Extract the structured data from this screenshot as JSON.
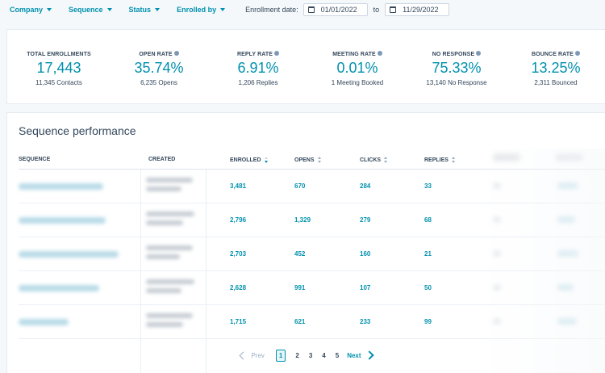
{
  "filters": {
    "company": "Company",
    "sequence": "Sequence",
    "status": "Status",
    "enrolled_by": "Enrolled by",
    "enrollment_date_label": "Enrollment date:",
    "start_date": "01/01/2022",
    "to_label": "to",
    "end_date": "11/29/2022"
  },
  "stats": [
    {
      "label": "TOTAL ENROLLMENTS",
      "value": "17,443",
      "sub": "11,345 Contacts",
      "info": false
    },
    {
      "label": "OPEN RATE",
      "value": "35.74%",
      "sub": "6,235 Opens",
      "info": true
    },
    {
      "label": "REPLY RATE",
      "value": "6.91%",
      "sub": "1,206 Replies",
      "info": true
    },
    {
      "label": "MEETING RATE",
      "value": "0.01%",
      "sub": "1 Meeting Booked",
      "info": true
    },
    {
      "label": "NO RESPONSE",
      "value": "75.33%",
      "sub": "13,140 No Response",
      "info": true
    },
    {
      "label": "BOUNCE RATE",
      "value": "13.25%",
      "sub": "2,311 Bounced",
      "info": true
    }
  ],
  "performance": {
    "title": "Sequence performance",
    "columns": [
      "SEQUENCE",
      "CREATED",
      "ENROLLED",
      "OPENS",
      "CLICKS",
      "REPLIES"
    ],
    "rows": [
      {
        "enrolled": "3,481",
        "opens": "670",
        "clicks": "284",
        "replies": "33"
      },
      {
        "enrolled": "2,796",
        "opens": "1,329",
        "clicks": "279",
        "replies": "68"
      },
      {
        "enrolled": "2,703",
        "opens": "452",
        "clicks": "160",
        "replies": "21"
      },
      {
        "enrolled": "2,628",
        "opens": "991",
        "clicks": "107",
        "replies": "50"
      },
      {
        "enrolled": "1,715",
        "opens": "621",
        "clicks": "233",
        "replies": "99"
      }
    ]
  },
  "pagination": {
    "prev": "Prev",
    "pages": [
      "1",
      "2",
      "3",
      "4",
      "5"
    ],
    "current": "1",
    "next": "Next"
  },
  "colors": {
    "accent": "#0091ae",
    "text": "#33475b",
    "background": "#f5f8fa"
  }
}
